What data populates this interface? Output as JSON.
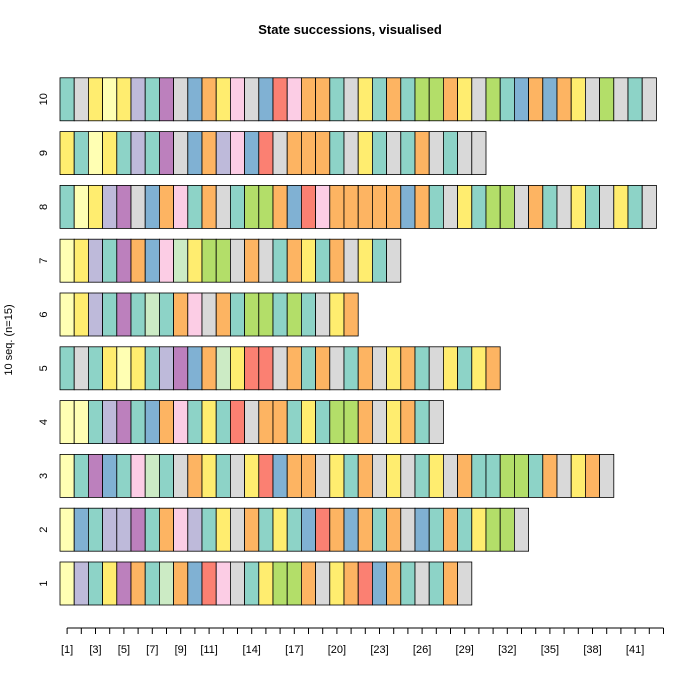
{
  "chart_data": {
    "type": "state-sequence-index-plot",
    "title": "State successions, visualised",
    "ylabel": "10 seq. (n=15)",
    "xlabel": "",
    "grid": false,
    "legend": "none",
    "x_tick_labels": [
      "[1]",
      "[3]",
      "[5]",
      "[7]",
      "[9]",
      "[11]",
      "[14]",
      "[17]",
      "[20]",
      "[23]",
      "[26]",
      "[29]",
      "[32]",
      "[35]",
      "[38]",
      "[41]"
    ],
    "x_tick_label_positions": [
      1,
      3,
      5,
      7,
      9,
      11,
      14,
      17,
      20,
      23,
      26,
      29,
      32,
      35,
      38,
      41
    ],
    "n_positions": 43,
    "state_colors": {
      "A": "#8DD3C7",
      "B": "#FFFFB3",
      "C": "#BEBADA",
      "D": "#FB8072",
      "E": "#80B1D3",
      "F": "#FDB462",
      "G": "#B3DE69",
      "H": "#FCCDE5",
      "I": "#D9D9D9",
      "J": "#BC80BD",
      "K": "#CCEBC5",
      "L": "#FFED6F"
    },
    "sequences": [
      {
        "label": "1",
        "states": [
          "B",
          "C",
          "A",
          "L",
          "J",
          "F",
          "A",
          "K",
          "F",
          "E",
          "D",
          "H",
          "I",
          "A",
          "L",
          "G",
          "G",
          "F",
          "I",
          "L",
          "F",
          "D",
          "E",
          "F",
          "A",
          "I",
          "A",
          "F",
          "I"
        ]
      },
      {
        "label": "2",
        "states": [
          "B",
          "E",
          "A",
          "C",
          "C",
          "J",
          "A",
          "F",
          "H",
          "C",
          "A",
          "L",
          "I",
          "F",
          "A",
          "L",
          "A",
          "E",
          "D",
          "F",
          "E",
          "F",
          "A",
          "F",
          "I",
          "E",
          "A",
          "F",
          "A",
          "L",
          "G",
          "G",
          "I"
        ]
      },
      {
        "label": "3",
        "states": [
          "B",
          "A",
          "J",
          "E",
          "A",
          "H",
          "K",
          "A",
          "I",
          "F",
          "L",
          "A",
          "I",
          "L",
          "D",
          "E",
          "F",
          "F",
          "I",
          "L",
          "A",
          "F",
          "I",
          "L",
          "I",
          "A",
          "L",
          "I",
          "F",
          "A",
          "A",
          "G",
          "G",
          "A",
          "F",
          "I",
          "L",
          "F",
          "I"
        ]
      },
      {
        "label": "4",
        "states": [
          "B",
          "B",
          "A",
          "C",
          "J",
          "A",
          "E",
          "F",
          "H",
          "A",
          "L",
          "A",
          "D",
          "I",
          "F",
          "F",
          "A",
          "L",
          "A",
          "G",
          "G",
          "F",
          "I",
          "L",
          "F",
          "A",
          "I"
        ]
      },
      {
        "label": "5",
        "states": [
          "A",
          "I",
          "A",
          "L",
          "B",
          "L",
          "A",
          "C",
          "J",
          "E",
          "F",
          "K",
          "L",
          "D",
          "D",
          "I",
          "F",
          "A",
          "F",
          "I",
          "A",
          "F",
          "I",
          "L",
          "F",
          "A",
          "I",
          "L",
          "A",
          "L",
          "F"
        ]
      },
      {
        "label": "6",
        "states": [
          "B",
          "L",
          "C",
          "A",
          "J",
          "A",
          "K",
          "A",
          "F",
          "H",
          "I",
          "F",
          "A",
          "G",
          "G",
          "A",
          "G",
          "A",
          "I",
          "L",
          "F"
        ]
      },
      {
        "label": "7",
        "states": [
          "B",
          "L",
          "C",
          "A",
          "J",
          "F",
          "E",
          "H",
          "K",
          "L",
          "G",
          "G",
          "I",
          "F",
          "I",
          "A",
          "F",
          "L",
          "A",
          "F",
          "I",
          "L",
          "A",
          "I"
        ]
      },
      {
        "label": "8",
        "states": [
          "A",
          "B",
          "L",
          "C",
          "J",
          "I",
          "E",
          "F",
          "H",
          "A",
          "F",
          "I",
          "A",
          "G",
          "G",
          "F",
          "E",
          "D",
          "H",
          "F",
          "F",
          "F",
          "F",
          "F",
          "E",
          "F",
          "A",
          "I",
          "L",
          "A",
          "G",
          "G",
          "I",
          "F",
          "A",
          "I",
          "L",
          "A",
          "I",
          "L",
          "A",
          "I"
        ]
      },
      {
        "label": "9",
        "states": [
          "L",
          "A",
          "B",
          "L",
          "A",
          "C",
          "A",
          "J",
          "I",
          "E",
          "F",
          "C",
          "H",
          "E",
          "D",
          "I",
          "F",
          "F",
          "F",
          "A",
          "I",
          "L",
          "A",
          "I",
          "A",
          "F",
          "I",
          "A",
          "I",
          "I"
        ]
      },
      {
        "label": "10",
        "states": [
          "A",
          "I",
          "L",
          "B",
          "L",
          "C",
          "A",
          "J",
          "I",
          "E",
          "F",
          "L",
          "H",
          "I",
          "E",
          "D",
          "H",
          "F",
          "F",
          "A",
          "I",
          "L",
          "A",
          "F",
          "A",
          "G",
          "G",
          "F",
          "L",
          "I",
          "G",
          "A",
          "E",
          "F",
          "E",
          "F",
          "L",
          "I",
          "G",
          "I",
          "A",
          "I"
        ]
      }
    ]
  }
}
